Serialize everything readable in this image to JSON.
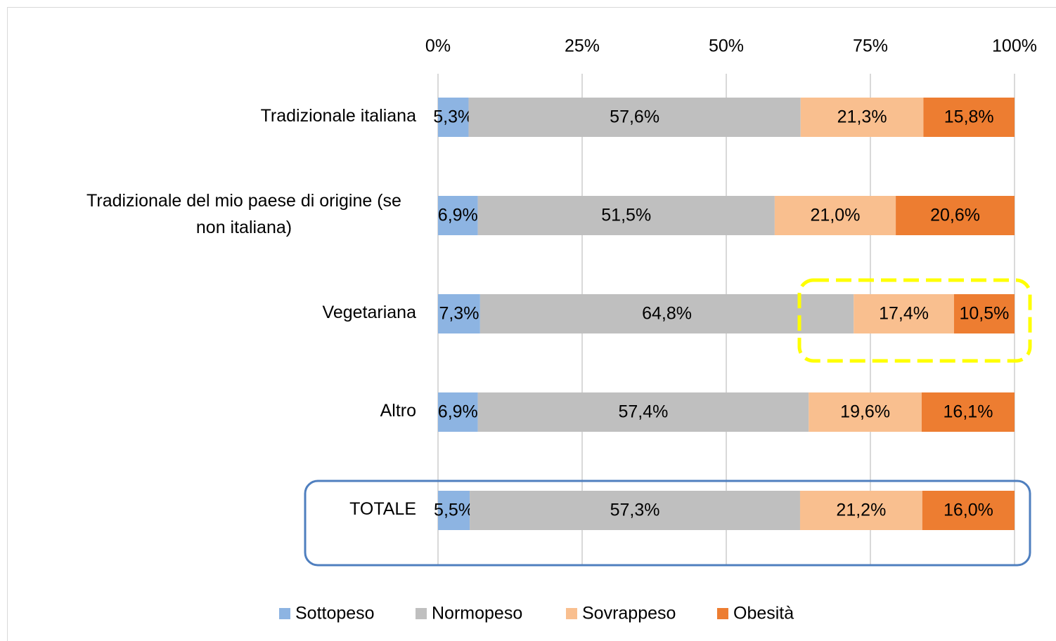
{
  "chart_data": {
    "type": "stacked_bar_horizontal",
    "categories": [
      "Tradizionale italiana",
      "Tradizionale del mio paese di origine (se non italiana)",
      "Vegetariana",
      "Altro",
      "TOTALE"
    ],
    "series": [
      {
        "name": "Sottopeso",
        "color": "#8db4e2",
        "values": [
          5.3,
          6.9,
          7.3,
          6.9,
          5.5
        ],
        "value_labels": [
          "5,3%",
          "6,9%",
          "7,3%",
          "6,9%",
          "5,5%"
        ]
      },
      {
        "name": "Normopeso",
        "color": "#bfbfbf",
        "values": [
          57.6,
          51.5,
          64.8,
          57.4,
          57.3
        ],
        "value_labels": [
          "57,6%",
          "51,5%",
          "64,8%",
          "57,4%",
          "57,3%"
        ]
      },
      {
        "name": "Sovrappeso",
        "color": "#f9bf8f",
        "values": [
          21.3,
          21.0,
          17.4,
          19.6,
          21.2
        ],
        "value_labels": [
          "21,3%",
          "21,0%",
          "17,4%",
          "19,6%",
          "21,2%"
        ]
      },
      {
        "name": "Obesità",
        "color": "#ed7d31",
        "values": [
          15.8,
          20.6,
          10.5,
          16.1,
          16.0
        ],
        "value_labels": [
          "15,8%",
          "20,6%",
          "10,5%",
          "16,1%",
          "16,0%"
        ]
      }
    ],
    "xlim": [
      0,
      100
    ],
    "xticks": [
      {
        "value": 0,
        "label": "0%"
      },
      {
        "value": 25,
        "label": "25%"
      },
      {
        "value": 50,
        "label": "50%"
      },
      {
        "value": 75,
        "label": "75%"
      },
      {
        "value": 100,
        "label": "100%"
      }
    ],
    "grid": true,
    "legend": "bottom"
  }
}
